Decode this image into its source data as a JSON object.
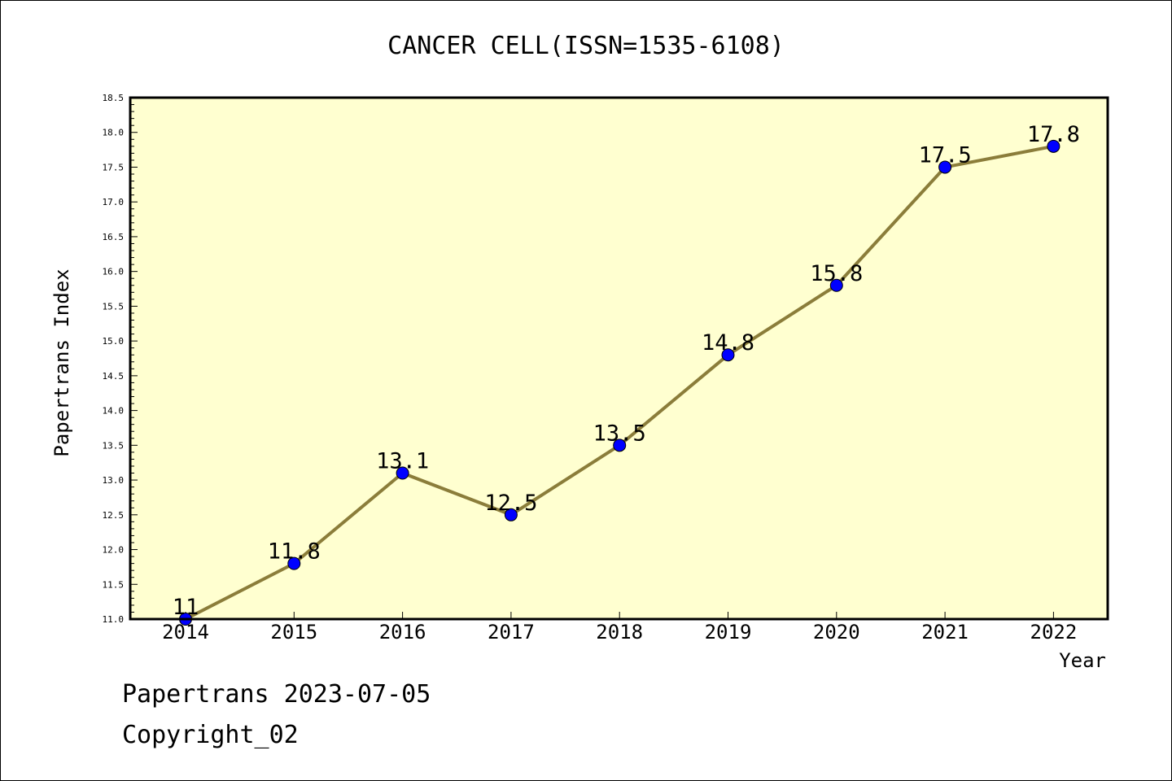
{
  "chart_data": {
    "type": "line",
    "title": "CANCER CELL(ISSN=1535-6108)",
    "xlabel": "Year",
    "ylabel": "Papertrans Index",
    "categories": [
      "2014",
      "2015",
      "2016",
      "2017",
      "2018",
      "2019",
      "2020",
      "2021",
      "2022"
    ],
    "series": [
      {
        "values": [
          11,
          11.8,
          13.1,
          12.5,
          13.5,
          14.8,
          15.8,
          17.5,
          17.8
        ],
        "labels": [
          "11",
          "11.8",
          "13.1",
          "12.5",
          "13.5",
          "14.8",
          "15.8",
          "17.5",
          "17.8"
        ],
        "line_color": "#8b7d3a",
        "marker_color": "#0000ff"
      }
    ],
    "ylim": [
      11.0,
      18.5
    ],
    "yticks": [
      "11.0",
      "11.5",
      "12.0",
      "12.5",
      "13.0",
      "13.5",
      "14.0",
      "14.5",
      "15.0",
      "15.5",
      "16.0",
      "16.5",
      "17.0",
      "17.5",
      "18.0",
      "18.5"
    ],
    "plot_background": "#ffffd0",
    "grid": false,
    "legend": "none"
  },
  "footer": {
    "line1": "Papertrans 2023-07-05",
    "line2": "Copyright_02"
  }
}
